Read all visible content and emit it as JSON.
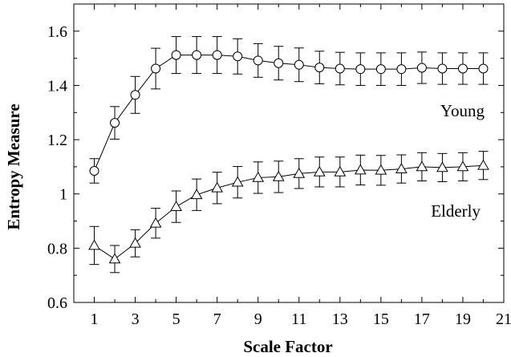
{
  "chart_data": {
    "type": "line",
    "xlabel": "Scale Factor",
    "ylabel": "Entropy Measure",
    "xlim": [
      0,
      21
    ],
    "ylim": [
      0.6,
      1.7
    ],
    "xticks": [
      1,
      3,
      5,
      7,
      9,
      11,
      13,
      15,
      17,
      19,
      21
    ],
    "yticks": [
      0.6,
      0.8,
      1,
      1.2,
      1.4,
      1.6
    ],
    "ytick_labels": [
      "0.6",
      "0.8",
      "1",
      "1.2",
      "1.4",
      "1.6"
    ],
    "grid": false,
    "legend": "none",
    "x": [
      1,
      2,
      3,
      4,
      5,
      6,
      7,
      8,
      9,
      10,
      11,
      12,
      13,
      14,
      15,
      16,
      17,
      18,
      19,
      20
    ],
    "series": [
      {
        "name": "Young",
        "marker": "circle",
        "values": [
          1.085,
          1.262,
          1.365,
          1.462,
          1.512,
          1.512,
          1.512,
          1.507,
          1.492,
          1.482,
          1.476,
          1.466,
          1.462,
          1.46,
          1.46,
          1.46,
          1.465,
          1.462,
          1.462,
          1.462
        ],
        "errors": [
          0.045,
          0.06,
          0.068,
          0.075,
          0.068,
          0.068,
          0.068,
          0.065,
          0.062,
          0.062,
          0.062,
          0.06,
          0.06,
          0.06,
          0.06,
          0.06,
          0.058,
          0.058,
          0.058,
          0.058
        ]
      },
      {
        "name": "Elderly",
        "marker": "triangle",
        "values": [
          0.81,
          0.76,
          0.818,
          0.892,
          0.953,
          0.997,
          1.022,
          1.043,
          1.06,
          1.063,
          1.075,
          1.081,
          1.081,
          1.088,
          1.087,
          1.092,
          1.1,
          1.097,
          1.1,
          1.105
        ],
        "errors": [
          0.07,
          0.05,
          0.05,
          0.055,
          0.058,
          0.058,
          0.058,
          0.058,
          0.058,
          0.058,
          0.055,
          0.055,
          0.055,
          0.055,
          0.055,
          0.052,
          0.052,
          0.052,
          0.052,
          0.052
        ]
      }
    ]
  }
}
